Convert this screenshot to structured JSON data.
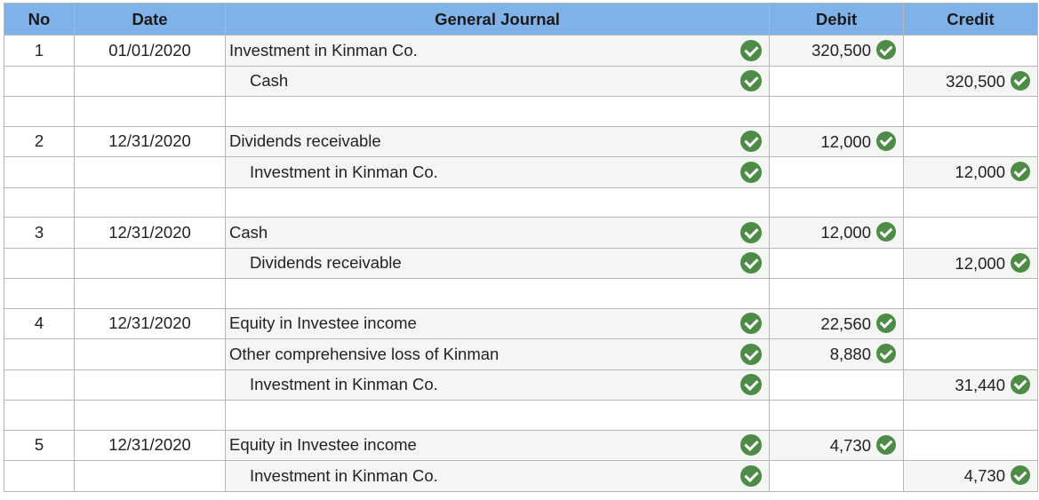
{
  "headers": {
    "no": "No",
    "date": "Date",
    "journal": "General Journal",
    "debit": "Debit",
    "credit": "Credit"
  },
  "colors": {
    "header_bg": "#7fb2e9",
    "check": "#4e8b46",
    "cell_bg": "#f4f6f4"
  },
  "icons": {
    "check": "check-circle-icon"
  },
  "entries": [
    {
      "no": "1",
      "date": "01/01/2020",
      "lines": [
        {
          "account": "Investment in Kinman Co.",
          "debit": "320,500",
          "credit": ""
        },
        {
          "account": "Cash",
          "debit": "",
          "credit": "320,500"
        }
      ]
    },
    {
      "no": "2",
      "date": "12/31/2020",
      "lines": [
        {
          "account": "Dividends receivable",
          "debit": "12,000",
          "credit": ""
        },
        {
          "account": "Investment in Kinman Co.",
          "debit": "",
          "credit": "12,000"
        }
      ]
    },
    {
      "no": "3",
      "date": "12/31/2020",
      "lines": [
        {
          "account": "Cash",
          "debit": "12,000",
          "credit": ""
        },
        {
          "account": "Dividends receivable",
          "debit": "",
          "credit": "12,000"
        }
      ]
    },
    {
      "no": "4",
      "date": "12/31/2020",
      "lines": [
        {
          "account": "Equity in Investee income",
          "debit": "22,560",
          "credit": ""
        },
        {
          "account": "Other comprehensive loss of Kinman",
          "debit": "8,880",
          "credit": ""
        },
        {
          "account": "Investment in Kinman Co.",
          "debit": "",
          "credit": "31,440"
        }
      ]
    },
    {
      "no": "5",
      "date": "12/31/2020",
      "lines": [
        {
          "account": "Equity in Investee income",
          "debit": "4,730",
          "credit": ""
        },
        {
          "account": "Investment in Kinman Co.",
          "debit": "",
          "credit": "4,730"
        }
      ]
    }
  ]
}
